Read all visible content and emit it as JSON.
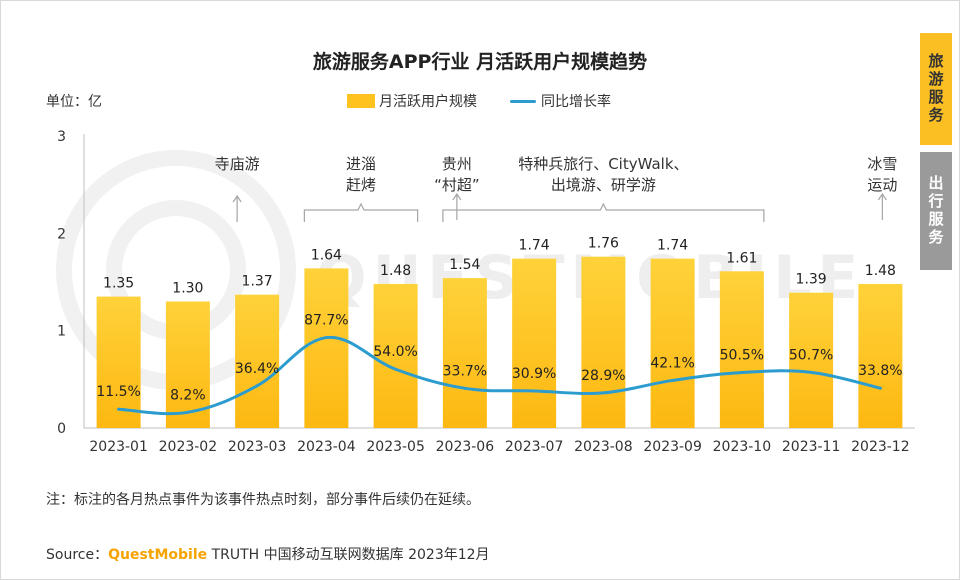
{
  "title": "旅游服务APP行业 月活跃用户规模趋势",
  "unit_label": "单位：亿",
  "legend": {
    "bar_label": "月活跃用户规模",
    "line_label": "同比增长率"
  },
  "side_tabs": {
    "active": "旅游服务",
    "inactive": "出行服务"
  },
  "note": "注：标注的各月热点事件为该事件热点时刻，部分事件后续仍在延续。",
  "source": {
    "prefix": "Source：",
    "brand": "QuestMobile",
    "text": " TRUTH 中国移动互联网数据库 2023年12月"
  },
  "watermark": "QUESTMOBILE",
  "colors": {
    "bar": "#FFC21F",
    "bar_gradient_top": "#FFD23A",
    "bar_gradient_bottom": "#FDB811",
    "line": "#2C9CCF",
    "active_tab": "#FBBF24",
    "inactive_tab": "#9a9a9a",
    "brand": "#F5A300"
  },
  "chart_data": {
    "type": "bar",
    "categories": [
      "2023-01",
      "2023-02",
      "2023-03",
      "2023-04",
      "2023-05",
      "2023-06",
      "2023-07",
      "2023-08",
      "2023-09",
      "2023-10",
      "2023-11",
      "2023-12"
    ],
    "series": [
      {
        "name": "月活跃用户规模",
        "type": "bar",
        "values": [
          1.35,
          1.3,
          1.37,
          1.64,
          1.48,
          1.54,
          1.74,
          1.76,
          1.74,
          1.61,
          1.39,
          1.48
        ],
        "labels": [
          "1.35",
          "1.30",
          "1.37",
          "1.64",
          "1.48",
          "1.54",
          "1.74",
          "1.76",
          "1.74",
          "1.61",
          "1.39",
          "1.48"
        ]
      },
      {
        "name": "同比增长率",
        "type": "line",
        "values": [
          11.5,
          8.2,
          36.4,
          87.7,
          54.0,
          33.7,
          30.9,
          28.9,
          42.1,
          50.5,
          50.7,
          33.8
        ],
        "labels": [
          "11.5%",
          "8.2%",
          "36.4%",
          "87.7%",
          "54.0%",
          "33.7%",
          "30.9%",
          "28.9%",
          "42.1%",
          "50.5%",
          "50.7%",
          "33.8%"
        ]
      }
    ],
    "ylim": [
      0,
      3
    ],
    "yticks": [
      "0",
      "1",
      "2",
      "3"
    ],
    "grid": false,
    "annotations": [
      {
        "lines": [
          "寺庙游"
        ],
        "month": "2023-03",
        "marker": "arrow"
      },
      {
        "lines": [
          "进淄",
          "赶烤"
        ],
        "month": "2023-04",
        "to_month": "2023-05",
        "marker": "bracket"
      },
      {
        "lines": [
          "贵州",
          "“村超”"
        ],
        "month": "2023-06",
        "marker": "arrow"
      },
      {
        "lines": [
          "特种兵旅行、CityWalk、",
          "出境游、研学游"
        ],
        "month": "2023-06",
        "to_month": "2023-10",
        "marker": "bracket"
      },
      {
        "lines": [
          "冰雪",
          "运动"
        ],
        "month": "2023-12",
        "marker": "arrow"
      }
    ]
  }
}
